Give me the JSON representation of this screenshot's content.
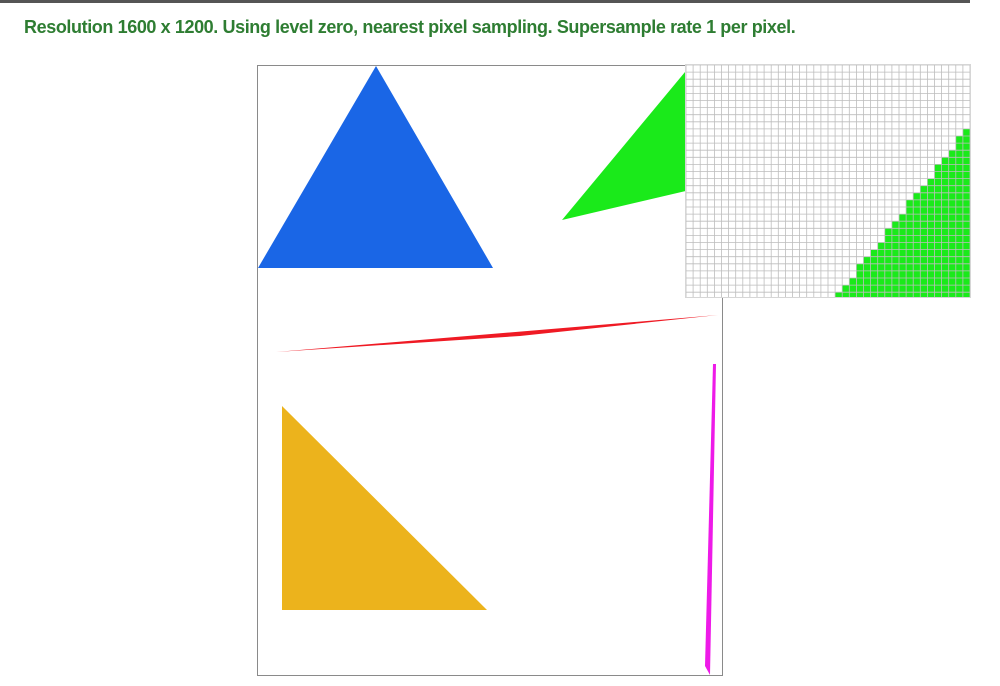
{
  "status": {
    "text": "Resolution 1600 x 1200. Using level zero, nearest pixel sampling. Supersample rate 1 per pixel.",
    "color": "#2e7d32"
  },
  "triangles": {
    "blue": "#1a66e6",
    "green": "#1aea1a",
    "red": "#ef1a24",
    "orange": "#ecb31c",
    "magenta": "#ee1ae8"
  },
  "zoom": {
    "grid_color": "#bdbdbd",
    "fill_color": "#1aea1a"
  }
}
